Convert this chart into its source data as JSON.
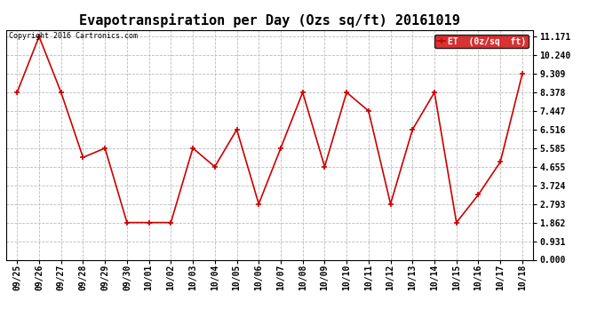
{
  "title": "Evapotranspiration per Day (Ozs sq/ft) 20161019",
  "legend_label": "ET  (0z/sq  ft)",
  "copyright": "Copyright 2016 Cartronics.com",
  "line_color": "#cc0000",
  "legend_bg": "#cc0000",
  "legend_text_color": "#ffffff",
  "background_color": "#ffffff",
  "grid_color": "#bbbbbb",
  "x_labels": [
    "09/25",
    "09/26",
    "09/27",
    "09/28",
    "09/29",
    "09/30",
    "10/01",
    "10/02",
    "10/03",
    "10/04",
    "10/05",
    "10/06",
    "10/07",
    "10/08",
    "10/09",
    "10/10",
    "10/11",
    "10/12",
    "10/13",
    "10/14",
    "10/15",
    "10/16",
    "10/17",
    "10/18"
  ],
  "y_values": [
    8.378,
    11.171,
    8.378,
    5.12,
    5.585,
    1.862,
    1.862,
    1.862,
    5.585,
    4.655,
    6.516,
    2.793,
    5.585,
    8.378,
    4.655,
    8.378,
    7.447,
    2.793,
    6.516,
    8.378,
    1.862,
    3.258,
    4.9,
    9.309
  ],
  "yticks": [
    0.0,
    0.931,
    1.862,
    2.793,
    3.724,
    4.655,
    5.585,
    6.516,
    7.447,
    8.378,
    9.309,
    10.24,
    11.171
  ],
  "ylim": [
    0.0,
    11.5
  ],
  "title_fontsize": 11,
  "tick_fontsize": 7,
  "copyright_fontsize": 6,
  "marker": "+",
  "marker_size": 5,
  "line_width": 1.2
}
